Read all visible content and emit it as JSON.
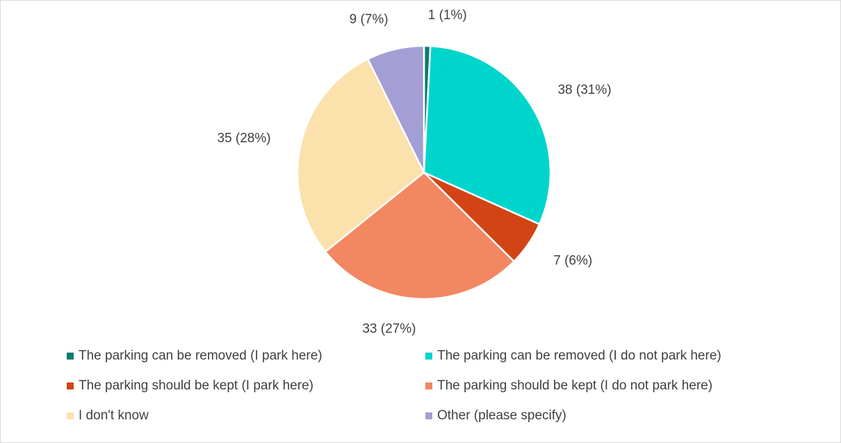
{
  "chart_data": {
    "type": "pie",
    "categories": [
      "The parking can be removed (I park here)",
      "The parking can be removed (I do not park here)",
      "The parking should be kept (I park here)",
      "The parking should be kept (I do not park here)",
      "I don't know",
      "Other (please specify)"
    ],
    "values": [
      1,
      38,
      7,
      33,
      35,
      9
    ],
    "value_labels": [
      "1 (1%)",
      "38 (31%)",
      "7 (6%)",
      "33 (27%)",
      "35 (28%)",
      "9 (7%)"
    ],
    "colors": [
      "#0d7a6f",
      "#00d5cc",
      "#d24415",
      "#f28762",
      "#fbe1ab",
      "#a39fd4"
    ],
    "legend": "bottom"
  }
}
